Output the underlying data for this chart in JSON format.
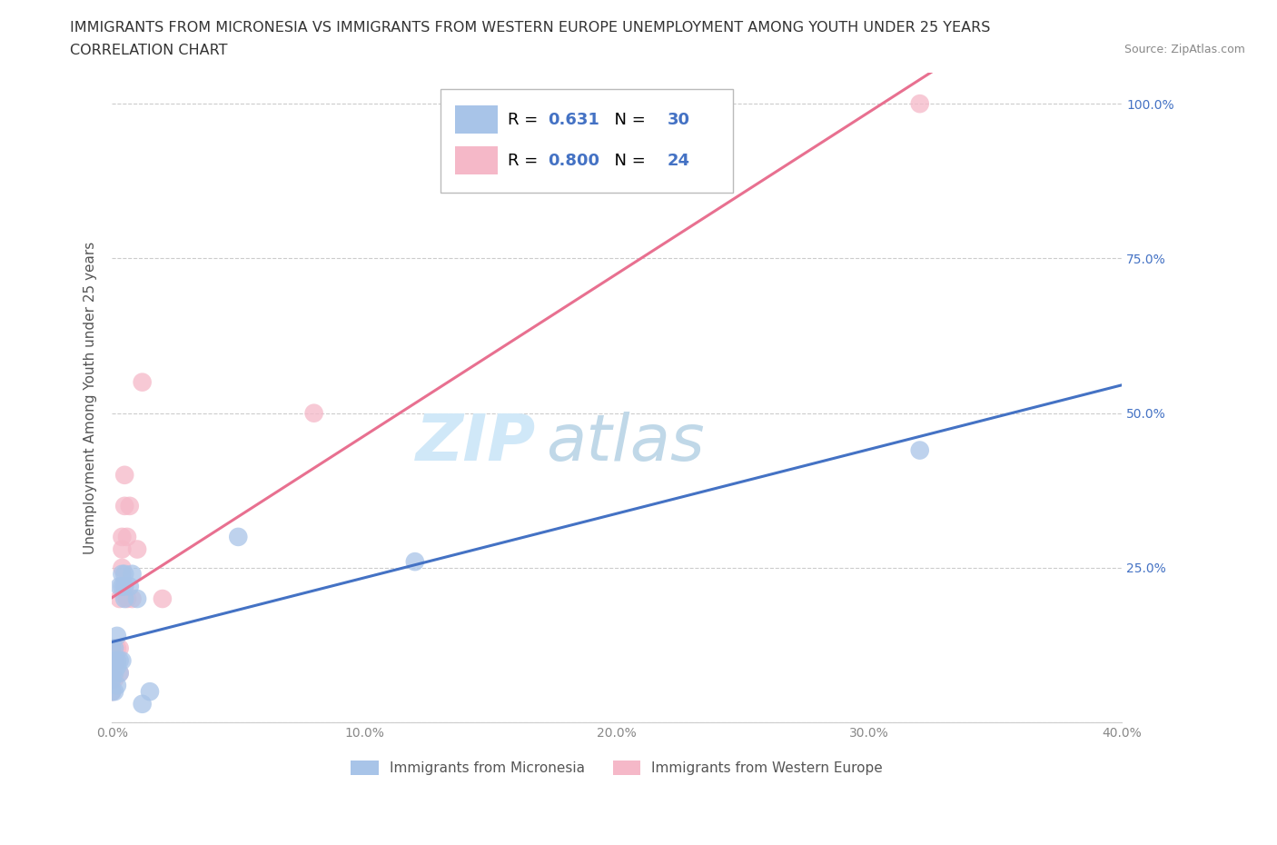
{
  "title_line1": "IMMIGRANTS FROM MICRONESIA VS IMMIGRANTS FROM WESTERN EUROPE UNEMPLOYMENT AMONG YOUTH UNDER 25 YEARS",
  "title_line2": "CORRELATION CHART",
  "source": "Source: ZipAtlas.com",
  "ylabel": "Unemployment Among Youth under 25 years",
  "watermark_zip": "ZIP",
  "watermark_atlas": "atlas",
  "xlim": [
    0.0,
    0.4
  ],
  "ylim": [
    0.0,
    1.05
  ],
  "xticks": [
    0.0,
    0.1,
    0.2,
    0.3,
    0.4
  ],
  "xtick_labels": [
    "0.0%",
    "10.0%",
    "20.0%",
    "30.0%",
    "40.0%"
  ],
  "yticks": [
    0.0,
    0.25,
    0.5,
    0.75,
    1.0
  ],
  "ytick_labels_right": [
    "",
    "25.0%",
    "50.0%",
    "75.0%",
    "100.0%"
  ],
  "blue_R": "0.631",
  "blue_N": "30",
  "pink_R": "0.800",
  "pink_N": "24",
  "blue_scatter_color": "#a8c4e8",
  "pink_scatter_color": "#f5b8c8",
  "blue_line_color": "#4472c4",
  "pink_line_color": "#e87090",
  "legend_blue_label": "Immigrants from Micronesia",
  "legend_pink_label": "Immigrants from Western Europe",
  "blue_x": [
    0.0,
    0.0,
    0.0,
    0.0,
    0.0,
    0.001,
    0.001,
    0.001,
    0.001,
    0.002,
    0.002,
    0.002,
    0.002,
    0.003,
    0.003,
    0.003,
    0.004,
    0.004,
    0.004,
    0.005,
    0.005,
    0.005,
    0.007,
    0.008,
    0.01,
    0.012,
    0.015,
    0.05,
    0.12,
    0.32
  ],
  "blue_y": [
    0.05,
    0.07,
    0.08,
    0.1,
    0.12,
    0.05,
    0.08,
    0.1,
    0.12,
    0.06,
    0.09,
    0.1,
    0.14,
    0.08,
    0.1,
    0.22,
    0.1,
    0.22,
    0.24,
    0.2,
    0.22,
    0.24,
    0.22,
    0.24,
    0.2,
    0.03,
    0.05,
    0.3,
    0.26,
    0.44
  ],
  "pink_x": [
    0.0,
    0.0,
    0.0,
    0.001,
    0.001,
    0.002,
    0.002,
    0.003,
    0.003,
    0.003,
    0.004,
    0.004,
    0.004,
    0.005,
    0.005,
    0.006,
    0.006,
    0.007,
    0.008,
    0.01,
    0.012,
    0.02,
    0.08,
    0.32
  ],
  "pink_y": [
    0.05,
    0.07,
    0.1,
    0.07,
    0.1,
    0.1,
    0.12,
    0.08,
    0.12,
    0.2,
    0.25,
    0.28,
    0.3,
    0.35,
    0.4,
    0.2,
    0.3,
    0.35,
    0.2,
    0.28,
    0.55,
    0.2,
    0.5,
    1.0
  ],
  "grid_color": "#cccccc",
  "background_color": "#ffffff",
  "title_fontsize": 11.5,
  "subtitle_fontsize": 11.5,
  "axis_label_fontsize": 11,
  "tick_fontsize": 10,
  "legend_fontsize": 13,
  "watermark_fontsize_zip": 52,
  "watermark_fontsize_atlas": 52,
  "watermark_color_zip": "#d0e8f8",
  "watermark_color_atlas": "#c0d8e8"
}
